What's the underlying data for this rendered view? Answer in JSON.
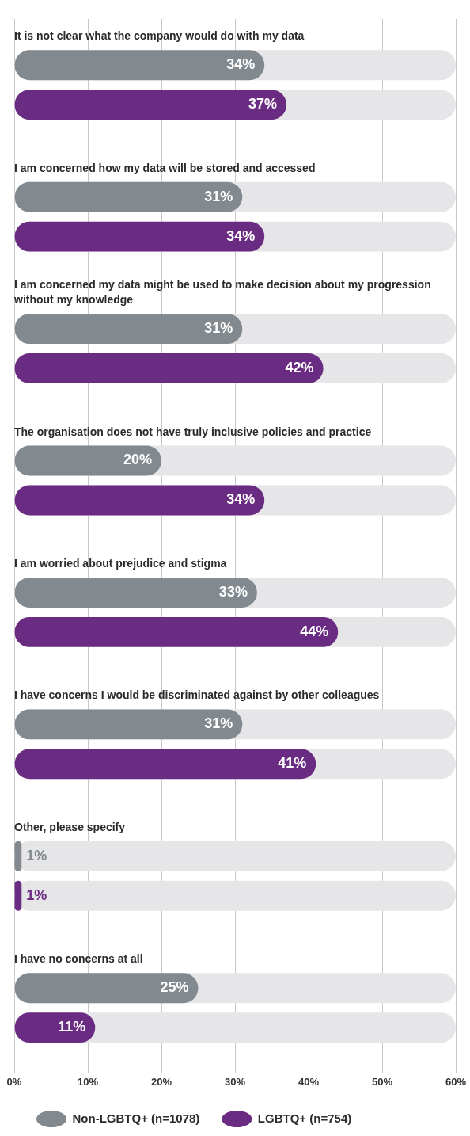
{
  "chart_data": {
    "type": "bar",
    "orientation": "horizontal",
    "categories": [
      "It is not clear what the company would do with my data",
      "I am concerned how my data will be stored and accessed",
      "I am concerned my data might be used to make decision about my progression without my knowledge",
      "The organisation does not have truly inclusive policies and practice",
      "I am worried about prejudice and stigma",
      "I have concerns I would be discriminated against by other colleagues",
      "Other, please specify",
      "I have no concerns at all"
    ],
    "series": [
      {
        "name": "Non-LGBTQ+ (n=1078)",
        "color": "#828a8f",
        "values": [
          34,
          31,
          31,
          20,
          33,
          31,
          1,
          25
        ],
        "value_labels": [
          "34%",
          "31%",
          "31%",
          "20%",
          "33%",
          "31%",
          "1%",
          "25%"
        ]
      },
      {
        "name": "LGBTQ+ (n=754)",
        "color": "#6a2c83",
        "values": [
          37,
          34,
          42,
          34,
          44,
          41,
          1,
          11
        ],
        "value_labels": [
          "37%",
          "34%",
          "42%",
          "34%",
          "44%",
          "41%",
          "1%",
          "11%"
        ]
      }
    ],
    "xlim": [
      0,
      60
    ],
    "xticks": [
      {
        "value": 0,
        "label": "0%"
      },
      {
        "value": 10,
        "label": "10%"
      },
      {
        "value": 20,
        "label": "20%"
      },
      {
        "value": 30,
        "label": "30%"
      },
      {
        "value": 40,
        "label": "40%"
      },
      {
        "value": 50,
        "label": "50%"
      },
      {
        "value": 60,
        "label": "60%"
      }
    ],
    "grid": "x",
    "legend": "bottom"
  }
}
